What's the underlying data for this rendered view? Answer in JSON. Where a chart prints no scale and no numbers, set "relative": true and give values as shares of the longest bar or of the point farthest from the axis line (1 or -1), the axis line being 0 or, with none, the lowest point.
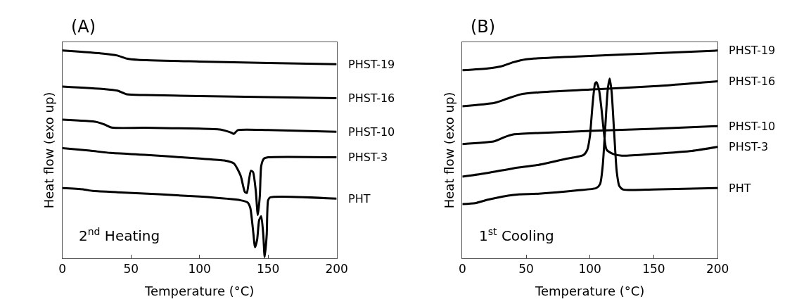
{
  "chart_data": [
    {
      "type": "line",
      "title": "(A)",
      "xlabel": "Temperature (°C)",
      "ylabel": "Heat flow (exo up)",
      "relative": true,
      "xlim": [
        0,
        200
      ],
      "xticks": [
        0,
        50,
        100,
        150,
        200
      ],
      "tick_labels": "x",
      "legend": false,
      "marker": "none",
      "line_style": "solid",
      "annotations": [
        "2$^{nd}$ Heating"
      ],
      "series": [
        {
          "name": "PHST-19",
          "color": "#000000",
          "x": [
            0,
            30,
            40,
            47,
            55,
            100,
            150,
            200
          ],
          "values": [
            1.0,
            0.985,
            0.976,
            0.961,
            0.955,
            0.947,
            0.94,
            0.934
          ]
        },
        {
          "name": "PHST-16",
          "color": "#000000",
          "x": [
            0,
            30,
            40,
            47,
            60,
            100,
            150,
            200
          ],
          "values": [
            0.827,
            0.815,
            0.807,
            0.789,
            0.786,
            0.781,
            0.776,
            0.771
          ]
        },
        {
          "name": "PHST-10",
          "color": "#000000",
          "x": [
            0,
            25,
            31,
            36,
            60,
            100,
            115,
            123,
            125,
            128,
            150,
            200
          ],
          "values": [
            0.667,
            0.656,
            0.643,
            0.629,
            0.628,
            0.624,
            0.62,
            0.605,
            0.599,
            0.617,
            0.617,
            0.609
          ]
        },
        {
          "name": "PHST-3",
          "color": "#000000",
          "x": [
            0,
            20,
            35,
            60,
            100,
            118,
            125,
            130,
            133,
            134.5,
            136,
            137.5,
            139,
            141,
            142.5,
            144,
            145,
            147,
            150,
            200
          ],
          "values": [
            0.53,
            0.518,
            0.507,
            0.498,
            0.48,
            0.471,
            0.457,
            0.397,
            0.32,
            0.314,
            0.374,
            0.421,
            0.415,
            0.326,
            0.208,
            0.302,
            0.445,
            0.48,
            0.486,
            0.486
          ]
        },
        {
          "name": "PHT",
          "color": "#000000",
          "x": [
            0,
            15,
            22,
            40,
            100,
            130,
            135,
            137,
            139,
            140.5,
            142,
            143.5,
            145,
            146.5,
            147.5,
            149,
            150,
            151.5,
            200
          ],
          "values": [
            0.338,
            0.332,
            0.324,
            0.318,
            0.297,
            0.279,
            0.269,
            0.243,
            0.136,
            0.053,
            0.089,
            0.184,
            0.202,
            0.113,
            0.006,
            0.113,
            0.279,
            0.293,
            0.287
          ]
        }
      ]
    },
    {
      "type": "line",
      "title": "(B)",
      "xlabel": "Temperature (°C)",
      "ylabel": "Heat flow (exo up)",
      "relative": true,
      "xlim": [
        0,
        200
      ],
      "xticks": [
        0,
        50,
        100,
        150,
        200
      ],
      "tick_labels": "x",
      "legend": false,
      "marker": "none",
      "line_style": "solid",
      "annotations": [
        "1$^{st}$ Cooling"
      ],
      "series": [
        {
          "name": "PHST-19",
          "color": "#000000",
          "x": [
            0,
            20,
            30,
            40,
            50,
            100,
            150,
            200
          ],
          "values": [
            0.905,
            0.914,
            0.923,
            0.944,
            0.958,
            0.974,
            0.987,
            1.0
          ]
        },
        {
          "name": "PHST-16",
          "color": "#000000",
          "x": [
            0,
            25,
            35,
            45,
            60,
            100,
            150,
            200
          ],
          "values": [
            0.732,
            0.748,
            0.768,
            0.788,
            0.799,
            0.812,
            0.828,
            0.852
          ]
        },
        {
          "name": "PHST-10",
          "color": "#000000",
          "x": [
            0,
            25,
            33,
            40,
            60,
            100,
            150,
            200
          ],
          "values": [
            0.55,
            0.563,
            0.583,
            0.596,
            0.603,
            0.613,
            0.623,
            0.636
          ]
        },
        {
          "name": "PHST-3",
          "color": "#000000",
          "x": [
            0,
            20,
            40,
            60,
            80,
            95,
            98,
            100,
            102,
            104,
            105,
            107,
            109,
            111,
            113,
            118,
            125,
            150,
            180,
            200
          ],
          "values": [
            0.393,
            0.411,
            0.433,
            0.45,
            0.477,
            0.497,
            0.523,
            0.589,
            0.735,
            0.841,
            0.848,
            0.815,
            0.722,
            0.603,
            0.523,
            0.503,
            0.494,
            0.503,
            0.517,
            0.536
          ]
        },
        {
          "name": "PHT",
          "color": "#000000",
          "x": [
            0,
            10,
            20,
            40,
            60,
            90,
            105,
            108,
            110,
            112,
            114,
            115.5,
            117,
            119,
            121,
            123,
            126,
            150,
            200
          ],
          "values": [
            0.261,
            0.265,
            0.282,
            0.305,
            0.311,
            0.327,
            0.338,
            0.358,
            0.444,
            0.629,
            0.815,
            0.865,
            0.801,
            0.603,
            0.417,
            0.348,
            0.331,
            0.331,
            0.338
          ]
        }
      ]
    }
  ]
}
